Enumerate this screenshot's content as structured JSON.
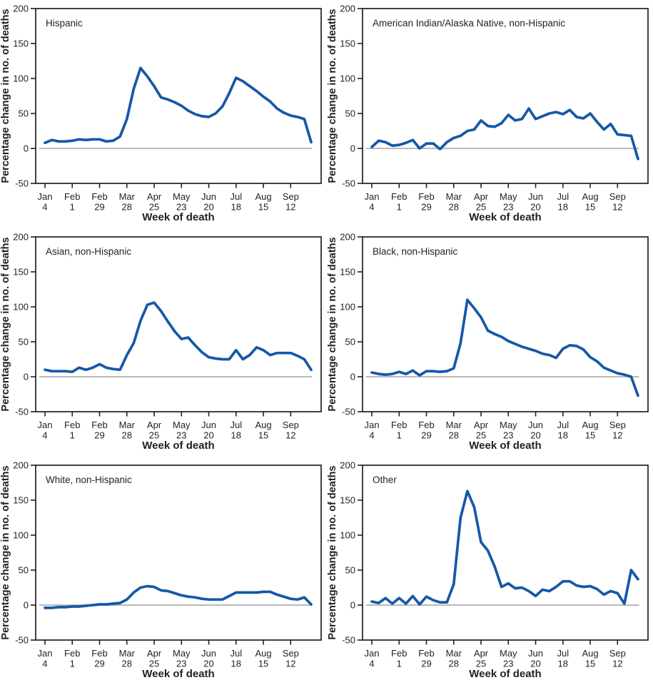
{
  "chart_data": {
    "type": "line",
    "layout": "grid-2x3",
    "title": "",
    "xlabel": "Week of death",
    "ylabel": "Percentage change in no. of deaths",
    "ylim": [
      -50,
      200
    ],
    "y_ticks": [
      200,
      150,
      100,
      50,
      0,
      -50
    ],
    "weeks_total": 40,
    "x_ticks": [
      {
        "month": "Jan",
        "day": "4",
        "week": 0
      },
      {
        "month": "Feb",
        "day": "1",
        "week": 4
      },
      {
        "month": "Feb",
        "day": "29",
        "week": 8
      },
      {
        "month": "Mar",
        "day": "28",
        "week": 12
      },
      {
        "month": "Apr",
        "day": "25",
        "week": 16
      },
      {
        "month": "May",
        "day": "23",
        "week": 20
      },
      {
        "month": "Jun",
        "day": "20",
        "week": 24
      },
      {
        "month": "Jul",
        "day": "18",
        "week": 28
      },
      {
        "month": "Aug",
        "day": "15",
        "week": 32
      },
      {
        "month": "Sep",
        "day": "12",
        "week": 36
      }
    ],
    "colors": {
      "line": "#1558a7",
      "zero_line": "#b0b0b0",
      "axis": "#231f20",
      "text": "#231f20",
      "background": "#ffffff"
    },
    "grid": false,
    "legend": "none",
    "panels": [
      {
        "title": "Hispanic",
        "values": [
          8,
          12,
          10,
          10,
          11,
          13,
          12,
          13,
          13,
          10,
          11,
          17,
          42,
          85,
          115,
          103,
          89,
          73,
          70,
          66,
          61,
          54,
          49,
          46,
          45,
          50,
          60,
          79,
          101,
          96,
          89,
          82,
          74,
          67,
          57,
          51,
          47,
          45,
          42,
          9
        ]
      },
      {
        "title": "American Indian/Alaska Native, non-Hispanic",
        "values": [
          2,
          11,
          9,
          4,
          5,
          8,
          12,
          0,
          7,
          7,
          -1,
          9,
          15,
          18,
          25,
          27,
          40,
          32,
          31,
          36,
          48,
          40,
          42,
          57,
          42,
          46,
          50,
          52,
          49,
          55,
          45,
          43,
          50,
          38,
          27,
          35,
          20,
          19,
          18,
          -15
        ]
      },
      {
        "title": "Asian, non-Hispanic",
        "values": [
          10,
          8,
          8,
          8,
          7,
          13,
          10,
          13,
          18,
          13,
          11,
          10,
          31,
          48,
          80,
          103,
          106,
          94,
          79,
          65,
          54,
          56,
          45,
          35,
          28,
          26,
          25,
          25,
          38,
          25,
          31,
          42,
          38,
          31,
          34,
          34,
          34,
          30,
          25,
          10
        ]
      },
      {
        "title": "Black, non-Hispanic",
        "values": [
          6,
          4,
          3,
          4,
          7,
          4,
          9,
          2,
          8,
          8,
          7,
          8,
          12,
          48,
          110,
          98,
          85,
          66,
          61,
          57,
          51,
          47,
          43,
          40,
          37,
          33,
          31,
          27,
          40,
          45,
          44,
          39,
          28,
          22,
          13,
          9,
          5,
          3,
          0,
          -27
        ]
      },
      {
        "title": "White, non-Hispanic",
        "values": [
          -4,
          -4,
          -3,
          -3,
          -2,
          -2,
          -1,
          0,
          1,
          1,
          2,
          3,
          8,
          18,
          25,
          27,
          26,
          21,
          20,
          17,
          14,
          12,
          11,
          9,
          8,
          8,
          8,
          13,
          18,
          18,
          18,
          18,
          19,
          19,
          15,
          12,
          9,
          8,
          11,
          1
        ]
      },
      {
        "title": "Other",
        "values": [
          5,
          3,
          10,
          2,
          10,
          2,
          13,
          1,
          12,
          7,
          4,
          4,
          30,
          125,
          163,
          140,
          90,
          78,
          55,
          26,
          31,
          24,
          25,
          20,
          13,
          22,
          20,
          26,
          34,
          34,
          28,
          26,
          27,
          23,
          15,
          20,
          17,
          2,
          50,
          37
        ]
      }
    ]
  }
}
